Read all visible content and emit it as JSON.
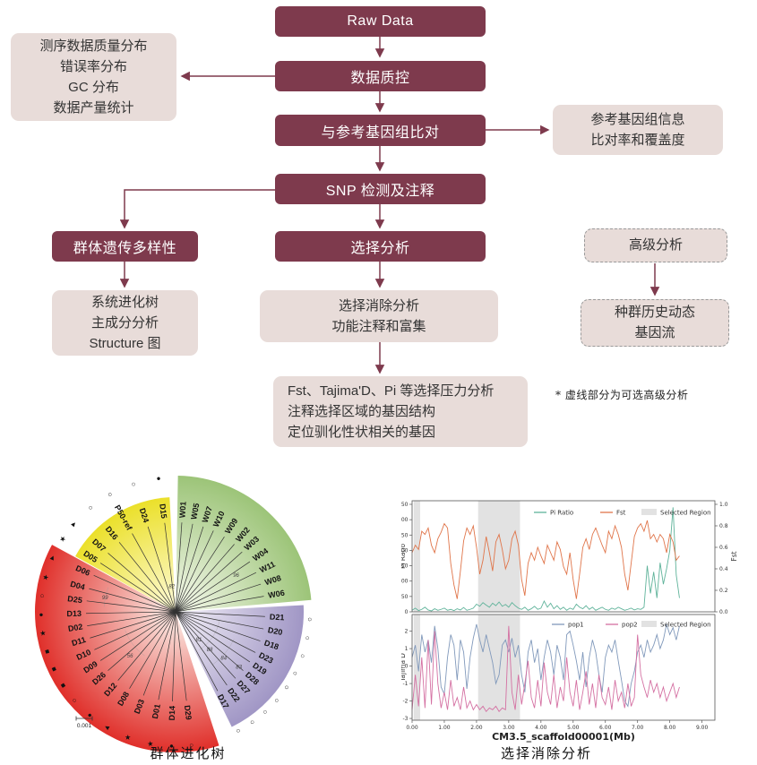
{
  "flowchart": {
    "raw_data": {
      "label": "Raw Data"
    },
    "qc": {
      "label": "数据质控"
    },
    "qc_outputs": {
      "lines": [
        "测序数据质量分布",
        "错误率分布",
        "GC 分布",
        "数据产量统计"
      ]
    },
    "align": {
      "label": "与参考基因组比对"
    },
    "ref_info": {
      "lines": [
        "参考基因组信息",
        "比对率和覆盖度"
      ]
    },
    "snp": {
      "label": "SNP 检测及注释"
    },
    "diversity": {
      "label": "群体遗传多样性"
    },
    "selection": {
      "label": "选择分析"
    },
    "advanced": {
      "label": "高级分析"
    },
    "tree_outputs": {
      "lines": [
        "系统进化树",
        "主成分分析",
        "Structure 图"
      ]
    },
    "sweep": {
      "lines": [
        "选择消除分析",
        "功能注释和富集"
      ]
    },
    "demography": {
      "lines": [
        "种群历史动态",
        "基因流"
      ]
    },
    "pressure": {
      "lines": [
        "Fst、Tajima'D、Pi 等选择压力分析",
        "注释选择区域的基因结构",
        "定位驯化性状相关的基因"
      ]
    },
    "note": "* 虚线部分为可选高级分析",
    "colors": {
      "dark": "#7e3a4d",
      "light": "#e8dcd9",
      "arrow": "#7e3a4d"
    }
  },
  "tree": {
    "caption": "群体进化树",
    "scale_label": "0.001",
    "sectors": [
      {
        "name": "yellow",
        "a0": 93,
        "a1": 151,
        "r": 128,
        "c0": "#fcf8c8",
        "c1": "#ebe02a"
      },
      {
        "name": "green",
        "a0": 5,
        "a1": 89,
        "r": 152,
        "c0": "#eef4e2",
        "c1": "#9cc478"
      },
      {
        "name": "red",
        "a0": 151.5,
        "a1": 288,
        "r": 157,
        "c0": "#f9dcd6",
        "c1": "#e02f2a"
      },
      {
        "name": "purple",
        "a0": -64,
        "a1": 3,
        "r": 143,
        "c0": "#eae6f2",
        "c1": "#a096c5"
      }
    ],
    "leaves": [
      {
        "label": "W01",
        "a": 86,
        "sym": "none"
      },
      {
        "label": "W05",
        "a": 79,
        "sym": "none"
      },
      {
        "label": "W07",
        "a": 72,
        "sym": "none"
      },
      {
        "label": "W10",
        "a": 65,
        "sym": "none"
      },
      {
        "label": "W09",
        "a": 57,
        "sym": "none"
      },
      {
        "label": "W02",
        "a": 49,
        "sym": "none"
      },
      {
        "label": "W03",
        "a": 42,
        "sym": "none"
      },
      {
        "label": "W04",
        "a": 34,
        "sym": "none"
      },
      {
        "label": "W11",
        "a": 26,
        "sym": "none"
      },
      {
        "label": "W08",
        "a": 18,
        "sym": "none"
      },
      {
        "label": "W06",
        "a": 10,
        "sym": "none"
      },
      {
        "label": "D21",
        "a": -3,
        "sym": "circle"
      },
      {
        "label": "D20",
        "a": -11,
        "sym": "circle"
      },
      {
        "label": "D18",
        "a": -19,
        "sym": "circle"
      },
      {
        "label": "D23",
        "a": -27,
        "sym": "circle"
      },
      {
        "label": "D19",
        "a": -34,
        "sym": "circle"
      },
      {
        "label": "D28",
        "a": -41,
        "sym": "circle"
      },
      {
        "label": "D27",
        "a": -48,
        "sym": "circle"
      },
      {
        "label": "D22",
        "a": -55,
        "sym": "circle"
      },
      {
        "label": "D17",
        "a": -62,
        "sym": "circle"
      },
      {
        "label": "D29",
        "a": 277,
        "sym": "circle"
      },
      {
        "label": "D14",
        "a": 268,
        "sym": "dot"
      },
      {
        "label": "D01",
        "a": 259,
        "sym": "star"
      },
      {
        "label": "D03",
        "a": 249,
        "sym": "star"
      },
      {
        "label": "D08",
        "a": 239,
        "sym": "tri"
      },
      {
        "label": "D12",
        "a": 230,
        "sym": "dot"
      },
      {
        "label": "D26",
        "a": 221,
        "sym": "circle"
      },
      {
        "label": "D09",
        "a": 213,
        "sym": "square"
      },
      {
        "label": "D10",
        "a": 205,
        "sym": "square"
      },
      {
        "label": "D11",
        "a": 197,
        "sym": "square"
      },
      {
        "label": "D02",
        "a": 189,
        "sym": "star"
      },
      {
        "label": "D13",
        "a": 181,
        "sym": "dot"
      },
      {
        "label": "D25",
        "a": 173,
        "sym": "circle"
      },
      {
        "label": "D04",
        "a": 165,
        "sym": "star"
      },
      {
        "label": "D06",
        "a": 156,
        "sym": "tri"
      },
      {
        "label": "D05",
        "a": 147,
        "sym": "star"
      },
      {
        "label": "D07",
        "a": 139,
        "sym": "tri"
      },
      {
        "label": "D16",
        "a": 129,
        "sym": "circle"
      },
      {
        "label": "P50-ref",
        "a": 119,
        "sym": "circle"
      },
      {
        "label": "D24",
        "a": 108,
        "sym": "circle"
      },
      {
        "label": "D15",
        "a": 97,
        "sym": "dot"
      }
    ],
    "bootstraps": [
      {
        "v": "82",
        "a": 99,
        "r": 27
      },
      {
        "v": "99",
        "a": 170,
        "r": 80
      },
      {
        "v": "96",
        "a": 30,
        "r": 78
      },
      {
        "v": "56",
        "a": 225,
        "r": 72
      },
      {
        "v": "81",
        "a": -52,
        "r": 42
      },
      {
        "v": "88",
        "a": -49,
        "r": 58
      },
      {
        "v": "84",
        "a": -45,
        "r": 76
      },
      {
        "v": "83",
        "a": -42,
        "r": 95
      }
    ]
  },
  "chart_data": [
    {
      "type": "line",
      "caption": "选择消除分析",
      "ylabel_left": "Pi Ratio",
      "ylabel_right": "Fst",
      "xlim": [
        0,
        9.4
      ],
      "ylim_left": [
        0,
        350
      ],
      "ylim_right": [
        0,
        1
      ],
      "yticks_left": [
        "0",
        "50",
        "100",
        "150",
        "200",
        "250",
        "300",
        "350"
      ],
      "yticks_right": [
        "0.0",
        "0.2",
        "0.4",
        "0.6",
        "0.8",
        "1.0"
      ],
      "legend": [
        "Pi Ratio",
        "Fst",
        "Selected Region"
      ],
      "selected_region_color": "#e2e2e2",
      "selected_regions": [
        [
          0.05,
          0.25
        ],
        [
          2.05,
          3.35
        ]
      ],
      "x_start": 0,
      "x_step": 0.1,
      "series": [
        {
          "name": "Pi Ratio",
          "color": "#5fb39a",
          "axis": "left",
          "values": [
            5,
            12,
            4,
            8,
            15,
            6,
            3,
            10,
            5,
            8,
            12,
            5,
            8,
            4,
            10,
            6,
            14,
            5,
            8,
            12,
            25,
            18,
            30,
            22,
            15,
            28,
            20,
            32,
            18,
            24,
            15,
            30,
            20,
            12,
            8,
            15,
            5,
            10,
            18,
            8,
            12,
            35,
            15,
            28,
            10,
            20,
            8,
            15,
            5,
            12,
            8,
            25,
            15,
            10,
            20,
            8,
            15,
            5,
            10,
            15,
            8,
            5,
            12,
            8,
            15,
            10,
            5,
            8,
            12,
            6,
            10,
            8,
            15,
            150,
            60,
            130,
            45,
            160,
            90,
            140,
            200,
            340,
            120,
            45
          ]
        },
        {
          "name": "Fst",
          "color": "#e0754a",
          "axis": "right",
          "values": [
            0.55,
            0.62,
            0.58,
            0.75,
            0.72,
            0.78,
            0.62,
            0.55,
            0.68,
            0.74,
            0.82,
            0.78,
            0.45,
            0.25,
            0.12,
            0.38,
            0.66,
            0.78,
            0.72,
            0.8,
            0.6,
            0.35,
            0.48,
            0.7,
            0.55,
            0.38,
            0.65,
            0.72,
            0.58,
            0.4,
            0.48,
            0.68,
            0.75,
            0.62,
            0.3,
            0.15,
            0.45,
            0.55,
            0.48,
            0.6,
            0.52,
            0.45,
            0.62,
            0.55,
            0.48,
            0.65,
            0.58,
            0.42,
            0.35,
            0.55,
            0.3,
            0.12,
            0.35,
            0.6,
            0.68,
            0.58,
            0.72,
            0.78,
            0.7,
            0.62,
            0.55,
            0.75,
            0.68,
            0.8,
            0.72,
            0.6,
            0.35,
            0.2,
            0.45,
            0.7,
            0.78,
            0.82,
            0.75,
            0.85,
            0.68,
            0.72,
            0.65,
            0.72,
            0.68,
            0.55,
            0.72,
            0.65,
            0.48,
            0.52
          ]
        }
      ]
    },
    {
      "type": "line",
      "xlabel": "CM3.5_scaffold00001(Mb)",
      "ylabel_left": "Tajima'D",
      "xlim": [
        0,
        9.4
      ],
      "ylim_left": [
        -3.1,
        2.8
      ],
      "yticks_left": [
        "2",
        "1",
        "0",
        "-1",
        "-2",
        "-3"
      ],
      "ytick_vals": [
        2,
        1,
        0,
        -1,
        -2,
        -3
      ],
      "xticks": [
        0,
        1,
        2,
        3,
        4,
        5,
        6,
        7,
        8,
        9
      ],
      "xtick_labels": [
        "0.00",
        "1.00",
        "2.00",
        "3.00",
        "4.00",
        "5.00",
        "6.00",
        "7.00",
        "8.00",
        "9.00"
      ],
      "legend": [
        "pop1",
        "pop2",
        "Selected Region"
      ],
      "selected_region_color": "#e2e2e2",
      "selected_regions": [
        [
          0.05,
          0.25
        ],
        [
          2.05,
          3.35
        ]
      ],
      "x_start": 0,
      "x_step": 0.1,
      "series": [
        {
          "name": "pop1",
          "color": "#8199bb",
          "axis": "left",
          "values": [
            0.5,
            1.2,
            -0.3,
            1.8,
            0.8,
            1.5,
            0.2,
            2.3,
            1.0,
            -1.2,
            -1.6,
            0.5,
            1.8,
            1.2,
            -0.8,
            1.5,
            0.8,
            -1.3,
            0.5,
            1.6,
            2.4,
            1.5,
            0.8,
            1.8,
            1.0,
            0.2,
            -1.0,
            -0.5,
            1.2,
            1.5,
            0.8,
            1.6,
            0.5,
            1.2,
            -0.5,
            -1.5,
            0.8,
            1.5,
            0.2,
            1.0,
            -0.8,
            0.5,
            1.5,
            0.8,
            -0.5,
            1.2,
            0.5,
            -0.8,
            1.8,
            2.0,
            1.2,
            0.3,
            -0.8,
            0.8,
            -1.2,
            0.5,
            1.5,
            0.8,
            -0.5,
            -1.5,
            0.5,
            1.2,
            0.8,
            1.5,
            0.3,
            -0.8,
            -2.0,
            -2.3,
            -1.0,
            -0.3,
            0.8,
            1.2,
            0.5,
            1.5,
            0.8,
            1.2,
            1.8,
            1.0,
            1.5,
            2.4,
            1.8,
            2.2,
            1.5,
            2.3
          ]
        },
        {
          "name": "pop2",
          "color": "#d470a2",
          "axis": "left",
          "values": [
            -2.5,
            -0.5,
            -2.3,
            0.5,
            -2.4,
            1.5,
            -2.2,
            2.0,
            -1.0,
            -2.4,
            -1.5,
            -2.5,
            -0.8,
            -2.3,
            -1.8,
            -2.5,
            -1.2,
            -2.4,
            -2.0,
            -2.5,
            -2.2,
            -2.5,
            -2.3,
            -2.6,
            -2.4,
            -2.5,
            -2.3,
            -2.6,
            -2.4,
            -2.5,
            2.3,
            -1.5,
            -2.5,
            -0.5,
            -2.2,
            -1.0,
            0.3,
            -1.8,
            -2.4,
            -0.8,
            -2.3,
            0.2,
            -1.5,
            -2.2,
            -0.5,
            -2.4,
            -1.2,
            -2.0,
            0.5,
            -1.5,
            -2.3,
            -0.8,
            -2.5,
            -1.5,
            -0.3,
            -2.2,
            -1.0,
            -2.4,
            -0.5,
            -1.8,
            -2.2,
            -1.2,
            -2.5,
            -0.8,
            -2.0,
            -1.5,
            -2.4,
            -1.0,
            -2.3,
            -1.8,
            1.8,
            -0.5,
            -1.2,
            -1.8,
            -0.8,
            -1.5,
            -1.0,
            -1.8,
            -1.2,
            -2.0,
            -1.5,
            -1.0,
            -1.8,
            -1.2
          ]
        }
      ]
    }
  ],
  "charts_caption": "选择消除分析"
}
